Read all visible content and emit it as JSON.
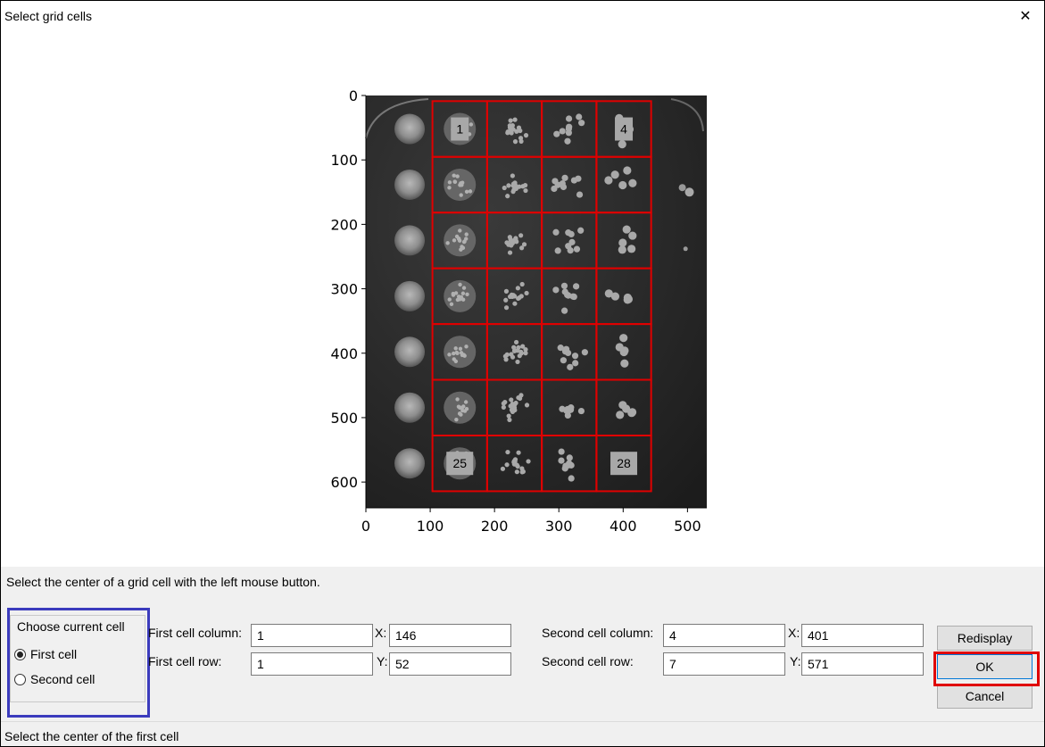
{
  "window": {
    "title": "Select grid cells",
    "close_label": "✕"
  },
  "plot": {
    "y_ticks": [
      "0",
      "100",
      "200",
      "300",
      "400",
      "500",
      "600"
    ],
    "x_ticks": [
      "0",
      "100",
      "200",
      "300",
      "400",
      "500"
    ],
    "cell_labels": [
      "1",
      "4",
      "25",
      "28"
    ],
    "grid_color": "#e00000"
  },
  "chart_data": {
    "type": "image_grid",
    "grid_columns": 4,
    "grid_rows": 7,
    "xlim": [
      0,
      530
    ],
    "ylim": [
      640,
      0
    ],
    "x_ticks": [
      0,
      100,
      200,
      300,
      400,
      500
    ],
    "y_ticks": [
      0,
      100,
      200,
      300,
      400,
      500,
      600
    ],
    "labeled_cells": [
      "1",
      "4",
      "25",
      "28"
    ]
  },
  "instruction": "Select the center of a grid cell with the left mouse button.",
  "choose": {
    "legend": "Choose current cell",
    "option_first": "First cell",
    "option_second": "Second cell",
    "selected": "first"
  },
  "first": {
    "col_label": "First cell column:",
    "row_label": "First cell row:",
    "col": "1",
    "row": "1",
    "x_label": "X:",
    "y_label": "Y:",
    "x": "146",
    "y": "52"
  },
  "second": {
    "col_label": "Second cell column:",
    "row_label": "Second cell row:",
    "col": "4",
    "row": "7",
    "x_label": "X:",
    "y_label": "Y:",
    "x": "401",
    "y": "571"
  },
  "buttons": {
    "redisplay": "Redisplay",
    "ok": "OK",
    "cancel": "Cancel"
  },
  "status": "Select the center of the first cell",
  "colors": {
    "highlight_blue": "#3b3bbd",
    "highlight_red": "#e00000",
    "panel_bg": "#f0f0f0"
  }
}
